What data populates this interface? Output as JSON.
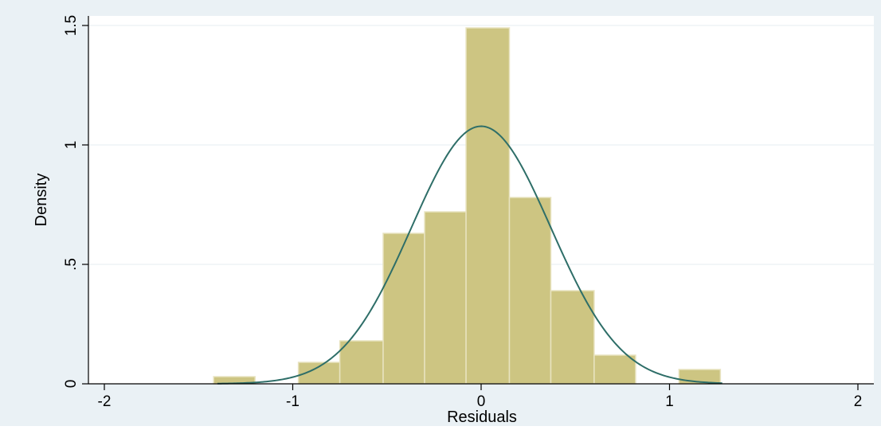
{
  "chart_data": {
    "type": "bar",
    "subtype": "histogram-with-normal-density",
    "title": "",
    "xlabel": "Residuals",
    "ylabel": "Density",
    "xlim": [
      -2,
      2
    ],
    "ylim": [
      0,
      1.5
    ],
    "x_ticks": [
      -2,
      -1,
      0,
      1,
      2
    ],
    "x_tick_labels": [
      "-2",
      "-1",
      "0",
      "1",
      "2"
    ],
    "y_ticks": [
      0,
      0.5,
      1,
      1.5
    ],
    "y_tick_labels": [
      "0",
      ".5",
      "1",
      "1.5"
    ],
    "grid": true,
    "bins": [
      {
        "from": -1.42,
        "to": -1.2,
        "density": 0.03
      },
      {
        "from": -0.97,
        "to": -0.75,
        "density": 0.09
      },
      {
        "from": -0.75,
        "to": -0.52,
        "density": 0.18
      },
      {
        "from": -0.52,
        "to": -0.3,
        "density": 0.63
      },
      {
        "from": -0.3,
        "to": -0.08,
        "density": 0.72
      },
      {
        "from": -0.08,
        "to": 0.15,
        "density": 1.49
      },
      {
        "from": 0.15,
        "to": 0.37,
        "density": 0.78
      },
      {
        "from": 0.37,
        "to": 0.6,
        "density": 0.39
      },
      {
        "from": 0.6,
        "to": 0.82,
        "density": 0.12
      },
      {
        "from": 1.05,
        "to": 1.27,
        "density": 0.06
      }
    ],
    "normal_curve": {
      "mean": 0.0,
      "sd": 0.37,
      "x_range": [
        -1.4,
        1.28
      ]
    },
    "colors": {
      "bar_fill": "#cdc582",
      "bar_stroke": "#e8e3c0",
      "curve": "#2e6e68",
      "outer_background": "#eaf1f5",
      "plot_background": "#ffffff",
      "grid": "#e4ecf0",
      "axis": "#000000"
    }
  }
}
